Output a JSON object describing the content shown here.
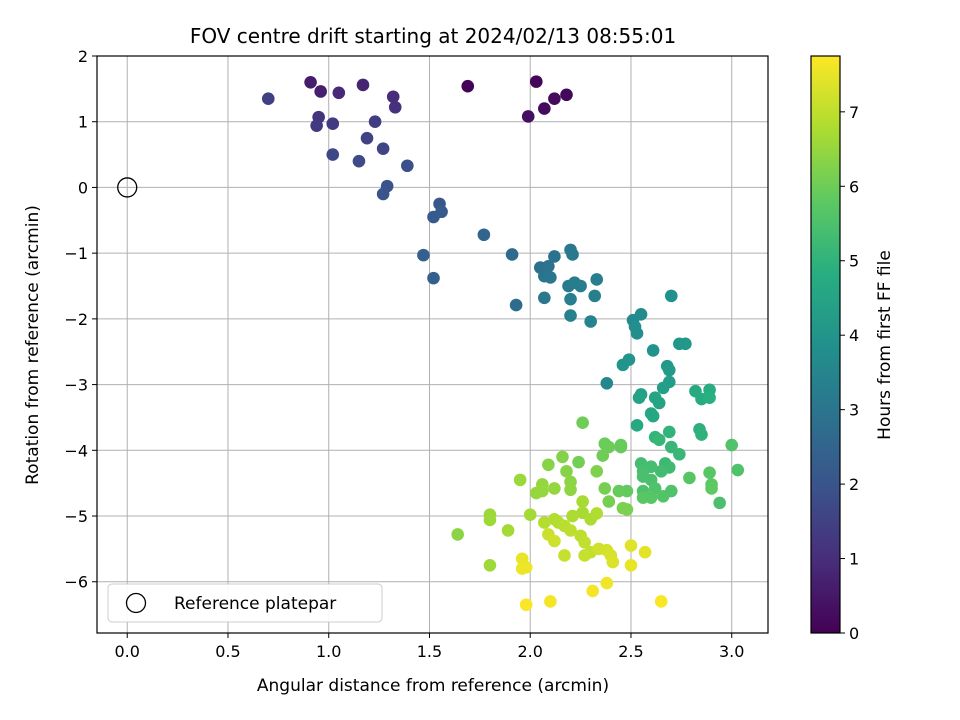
{
  "chart_data": {
    "type": "scatter",
    "title": "FOV centre drift starting at 2024/02/13 08:55:01",
    "xlabel": "Angular distance from reference (arcmin)",
    "ylabel": "Rotation from reference (arcmin)",
    "xlim": [
      -0.15,
      3.18
    ],
    "ylim": [
      -6.78,
      2.0
    ],
    "xticks": [
      0.0,
      0.5,
      1.0,
      1.5,
      2.0,
      2.5,
      3.0
    ],
    "xtick_labels": [
      "0.0",
      "0.5",
      "1.0",
      "1.5",
      "2.0",
      "2.5",
      "3.0"
    ],
    "yticks": [
      2,
      1,
      0,
      -1,
      -2,
      -3,
      -4,
      -5,
      -6
    ],
    "ytick_labels": [
      "2",
      "1",
      "0",
      "−1",
      "−2",
      "−3",
      "−4",
      "−5",
      "−6"
    ],
    "grid": true,
    "colormap": "viridis",
    "colorbar": {
      "label": "Hours from first FF file",
      "range": [
        0,
        7.75
      ],
      "ticks": [
        0,
        1,
        2,
        3,
        4,
        5,
        6,
        7
      ],
      "tick_labels": [
        "0",
        "1",
        "2",
        "3",
        "4",
        "5",
        "6",
        "7"
      ]
    },
    "legend": {
      "entries": [
        "Reference platepar"
      ],
      "placement": "lower-left"
    },
    "reference": {
      "label": "Reference platepar",
      "x": 0.0,
      "y": 0.0
    },
    "points": [
      {
        "x": 1.69,
        "y": 1.54,
        "t": 0.05
      },
      {
        "x": 2.03,
        "y": 1.61,
        "t": 0.1
      },
      {
        "x": 2.18,
        "y": 1.41,
        "t": 0.15
      },
      {
        "x": 2.12,
        "y": 1.35,
        "t": 0.2
      },
      {
        "x": 2.07,
        "y": 1.2,
        "t": 0.25
      },
      {
        "x": 1.99,
        "y": 1.08,
        "t": 0.3
      },
      {
        "x": 0.91,
        "y": 1.6,
        "t": 0.6
      },
      {
        "x": 0.96,
        "y": 1.46,
        "t": 0.7
      },
      {
        "x": 1.17,
        "y": 1.56,
        "t": 0.8
      },
      {
        "x": 1.05,
        "y": 1.44,
        "t": 0.9
      },
      {
        "x": 1.32,
        "y": 1.38,
        "t": 1.0
      },
      {
        "x": 1.33,
        "y": 1.22,
        "t": 1.1
      },
      {
        "x": 0.95,
        "y": 1.07,
        "t": 1.2
      },
      {
        "x": 0.94,
        "y": 0.94,
        "t": 1.3
      },
      {
        "x": 1.02,
        "y": 0.97,
        "t": 1.35
      },
      {
        "x": 1.23,
        "y": 1.0,
        "t": 1.4
      },
      {
        "x": 0.7,
        "y": 1.35,
        "t": 1.5
      },
      {
        "x": 1.19,
        "y": 0.75,
        "t": 1.55
      },
      {
        "x": 1.27,
        "y": 0.59,
        "t": 1.6
      },
      {
        "x": 1.02,
        "y": 0.5,
        "t": 1.7
      },
      {
        "x": 1.15,
        "y": 0.4,
        "t": 1.8
      },
      {
        "x": 1.39,
        "y": 0.33,
        "t": 1.9
      },
      {
        "x": 1.29,
        "y": 0.02,
        "t": 2.0
      },
      {
        "x": 1.27,
        "y": -0.1,
        "t": 2.05
      },
      {
        "x": 1.55,
        "y": -0.25,
        "t": 2.15
      },
      {
        "x": 1.52,
        "y": -0.45,
        "t": 2.2
      },
      {
        "x": 1.56,
        "y": -0.37,
        "t": 2.25
      },
      {
        "x": 1.47,
        "y": -1.03,
        "t": 2.35
      },
      {
        "x": 1.52,
        "y": -1.38,
        "t": 2.4
      },
      {
        "x": 1.77,
        "y": -0.72,
        "t": 2.55
      },
      {
        "x": 1.91,
        "y": -1.02,
        "t": 2.7
      },
      {
        "x": 1.93,
        "y": -1.79,
        "t": 2.75
      },
      {
        "x": 2.05,
        "y": -1.22,
        "t": 2.85
      },
      {
        "x": 2.09,
        "y": -1.2,
        "t": 2.9
      },
      {
        "x": 2.12,
        "y": -1.05,
        "t": 2.95
      },
      {
        "x": 2.07,
        "y": -1.35,
        "t": 3.0
      },
      {
        "x": 2.1,
        "y": -1.37,
        "t": 3.05
      },
      {
        "x": 2.07,
        "y": -1.68,
        "t": 3.1
      },
      {
        "x": 2.2,
        "y": -0.95,
        "t": 3.1
      },
      {
        "x": 2.21,
        "y": -1.02,
        "t": 3.15
      },
      {
        "x": 2.19,
        "y": -1.5,
        "t": 3.2
      },
      {
        "x": 2.22,
        "y": -1.45,
        "t": 3.25
      },
      {
        "x": 2.25,
        "y": -1.5,
        "t": 3.25
      },
      {
        "x": 2.2,
        "y": -1.7,
        "t": 3.3
      },
      {
        "x": 2.33,
        "y": -1.4,
        "t": 3.3
      },
      {
        "x": 2.32,
        "y": -1.65,
        "t": 3.35
      },
      {
        "x": 2.2,
        "y": -1.95,
        "t": 3.4
      },
      {
        "x": 2.3,
        "y": -2.04,
        "t": 3.5
      },
      {
        "x": 2.38,
        "y": -2.98,
        "t": 3.6
      },
      {
        "x": 2.51,
        "y": -2.02,
        "t": 3.7
      },
      {
        "x": 2.55,
        "y": -1.93,
        "t": 3.75
      },
      {
        "x": 2.53,
        "y": -2.22,
        "t": 3.8
      },
      {
        "x": 2.52,
        "y": -2.12,
        "t": 3.8
      },
      {
        "x": 2.7,
        "y": -1.65,
        "t": 3.9
      },
      {
        "x": 2.61,
        "y": -2.48,
        "t": 3.95
      },
      {
        "x": 2.49,
        "y": -2.62,
        "t": 4.0
      },
      {
        "x": 2.46,
        "y": -2.7,
        "t": 4.05
      },
      {
        "x": 2.74,
        "y": -2.38,
        "t": 4.1
      },
      {
        "x": 2.77,
        "y": -2.38,
        "t": 4.15
      },
      {
        "x": 2.68,
        "y": -2.72,
        "t": 4.2
      },
      {
        "x": 2.69,
        "y": -2.78,
        "t": 4.25
      },
      {
        "x": 2.69,
        "y": -2.96,
        "t": 4.3
      },
      {
        "x": 2.66,
        "y": -3.05,
        "t": 4.35
      },
      {
        "x": 2.55,
        "y": -3.15,
        "t": 4.4
      },
      {
        "x": 2.54,
        "y": -3.2,
        "t": 4.45
      },
      {
        "x": 2.62,
        "y": -3.2,
        "t": 4.5
      },
      {
        "x": 2.64,
        "y": -3.28,
        "t": 4.55
      },
      {
        "x": 2.6,
        "y": -3.44,
        "t": 4.6
      },
      {
        "x": 2.61,
        "y": -3.48,
        "t": 4.65
      },
      {
        "x": 2.53,
        "y": -3.62,
        "t": 4.7
      },
      {
        "x": 2.82,
        "y": -3.1,
        "t": 4.75
      },
      {
        "x": 2.85,
        "y": -3.22,
        "t": 4.8
      },
      {
        "x": 2.89,
        "y": -3.08,
        "t": 4.85
      },
      {
        "x": 2.89,
        "y": -3.2,
        "t": 4.9
      },
      {
        "x": 2.84,
        "y": -3.68,
        "t": 4.95
      },
      {
        "x": 2.85,
        "y": -3.76,
        "t": 5.0
      },
      {
        "x": 2.69,
        "y": -3.72,
        "t": 5.05
      },
      {
        "x": 2.62,
        "y": -3.8,
        "t": 5.1
      },
      {
        "x": 2.64,
        "y": -3.84,
        "t": 5.15
      },
      {
        "x": 2.7,
        "y": -3.95,
        "t": 5.15
      },
      {
        "x": 2.74,
        "y": -4.06,
        "t": 5.2
      },
      {
        "x": 2.67,
        "y": -4.2,
        "t": 5.25
      },
      {
        "x": 2.69,
        "y": -4.26,
        "t": 5.3
      },
      {
        "x": 2.65,
        "y": -4.32,
        "t": 5.35
      },
      {
        "x": 2.6,
        "y": -4.25,
        "t": 5.4
      },
      {
        "x": 2.55,
        "y": -4.2,
        "t": 5.4
      },
      {
        "x": 2.56,
        "y": -4.32,
        "t": 5.45
      },
      {
        "x": 2.56,
        "y": -4.4,
        "t": 5.5
      },
      {
        "x": 2.6,
        "y": -4.45,
        "t": 5.5
      },
      {
        "x": 2.56,
        "y": -4.62,
        "t": 5.55
      },
      {
        "x": 2.62,
        "y": -4.58,
        "t": 5.6
      },
      {
        "x": 2.7,
        "y": -4.62,
        "t": 5.6
      },
      {
        "x": 2.66,
        "y": -4.7,
        "t": 5.65
      },
      {
        "x": 2.6,
        "y": -4.72,
        "t": 5.7
      },
      {
        "x": 2.56,
        "y": -4.72,
        "t": 5.75
      },
      {
        "x": 2.79,
        "y": -4.42,
        "t": 5.7
      },
      {
        "x": 2.89,
        "y": -4.34,
        "t": 5.75
      },
      {
        "x": 2.9,
        "y": -4.52,
        "t": 5.8
      },
      {
        "x": 2.9,
        "y": -4.58,
        "t": 5.85
      },
      {
        "x": 3.03,
        "y": -4.3,
        "t": 5.6
      },
      {
        "x": 3.0,
        "y": -3.92,
        "t": 5.6
      },
      {
        "x": 2.94,
        "y": -4.8,
        "t": 5.5
      },
      {
        "x": 2.48,
        "y": -4.62,
        "t": 5.9
      },
      {
        "x": 2.44,
        "y": -4.62,
        "t": 5.95
      },
      {
        "x": 2.45,
        "y": -3.92,
        "t": 5.9
      },
      {
        "x": 2.45,
        "y": -3.95,
        "t": 5.95
      },
      {
        "x": 2.37,
        "y": -3.9,
        "t": 6.0
      },
      {
        "x": 2.39,
        "y": -3.95,
        "t": 6.0
      },
      {
        "x": 2.36,
        "y": -4.08,
        "t": 6.05
      },
      {
        "x": 2.26,
        "y": -3.58,
        "t": 6.05
      },
      {
        "x": 2.24,
        "y": -4.18,
        "t": 6.1
      },
      {
        "x": 2.37,
        "y": -4.58,
        "t": 6.15
      },
      {
        "x": 2.39,
        "y": -4.78,
        "t": 6.15
      },
      {
        "x": 2.46,
        "y": -4.88,
        "t": 6.2
      },
      {
        "x": 2.48,
        "y": -4.9,
        "t": 6.2
      },
      {
        "x": 2.33,
        "y": -4.32,
        "t": 6.25
      },
      {
        "x": 2.16,
        "y": -4.1,
        "t": 6.3
      },
      {
        "x": 2.09,
        "y": -4.22,
        "t": 6.35
      },
      {
        "x": 2.18,
        "y": -4.32,
        "t": 6.35
      },
      {
        "x": 2.2,
        "y": -4.48,
        "t": 6.4
      },
      {
        "x": 2.2,
        "y": -4.6,
        "t": 6.45
      },
      {
        "x": 2.06,
        "y": -4.52,
        "t": 6.5
      },
      {
        "x": 2.12,
        "y": -4.58,
        "t": 6.5
      },
      {
        "x": 2.06,
        "y": -4.62,
        "t": 6.55
      },
      {
        "x": 2.03,
        "y": -4.65,
        "t": 6.55
      },
      {
        "x": 1.95,
        "y": -4.45,
        "t": 6.6
      },
      {
        "x": 1.64,
        "y": -5.28,
        "t": 6.4
      },
      {
        "x": 1.8,
        "y": -4.98,
        "t": 6.6
      },
      {
        "x": 1.8,
        "y": -5.06,
        "t": 6.65
      },
      {
        "x": 1.8,
        "y": -5.75,
        "t": 6.65
      },
      {
        "x": 1.89,
        "y": -5.22,
        "t": 6.7
      },
      {
        "x": 2.0,
        "y": -4.98,
        "t": 6.7
      },
      {
        "x": 2.26,
        "y": -4.78,
        "t": 6.75
      },
      {
        "x": 2.26,
        "y": -4.95,
        "t": 6.75
      },
      {
        "x": 2.21,
        "y": -5.0,
        "t": 6.8
      },
      {
        "x": 2.3,
        "y": -5.05,
        "t": 6.8
      },
      {
        "x": 2.33,
        "y": -4.96,
        "t": 6.85
      },
      {
        "x": 2.12,
        "y": -5.05,
        "t": 6.85
      },
      {
        "x": 2.14,
        "y": -5.1,
        "t": 6.9
      },
      {
        "x": 2.07,
        "y": -5.1,
        "t": 6.9
      },
      {
        "x": 2.17,
        "y": -5.15,
        "t": 6.95
      },
      {
        "x": 2.2,
        "y": -5.22,
        "t": 7.0
      },
      {
        "x": 2.25,
        "y": -5.3,
        "t": 7.0
      },
      {
        "x": 2.27,
        "y": -5.4,
        "t": 7.05
      },
      {
        "x": 2.3,
        "y": -5.55,
        "t": 7.05
      },
      {
        "x": 2.27,
        "y": -5.6,
        "t": 7.1
      },
      {
        "x": 2.17,
        "y": -5.6,
        "t": 7.1
      },
      {
        "x": 2.09,
        "y": -5.28,
        "t": 7.15
      },
      {
        "x": 2.12,
        "y": -5.38,
        "t": 7.2
      },
      {
        "x": 2.34,
        "y": -5.5,
        "t": 7.2
      },
      {
        "x": 2.38,
        "y": -5.52,
        "t": 7.25
      },
      {
        "x": 2.4,
        "y": -5.6,
        "t": 7.3
      },
      {
        "x": 2.41,
        "y": -5.7,
        "t": 7.35
      },
      {
        "x": 2.5,
        "y": -5.45,
        "t": 7.4
      },
      {
        "x": 2.57,
        "y": -5.55,
        "t": 7.45
      },
      {
        "x": 2.5,
        "y": -5.75,
        "t": 7.5
      },
      {
        "x": 1.96,
        "y": -5.65,
        "t": 7.5
      },
      {
        "x": 1.98,
        "y": -5.78,
        "t": 7.55
      },
      {
        "x": 1.96,
        "y": -5.8,
        "t": 7.55
      },
      {
        "x": 2.38,
        "y": -6.02,
        "t": 7.6
      },
      {
        "x": 2.31,
        "y": -6.14,
        "t": 7.65
      },
      {
        "x": 2.1,
        "y": -6.3,
        "t": 7.65
      },
      {
        "x": 1.98,
        "y": -6.35,
        "t": 7.7
      },
      {
        "x": 2.65,
        "y": -6.3,
        "t": 7.7
      }
    ]
  }
}
